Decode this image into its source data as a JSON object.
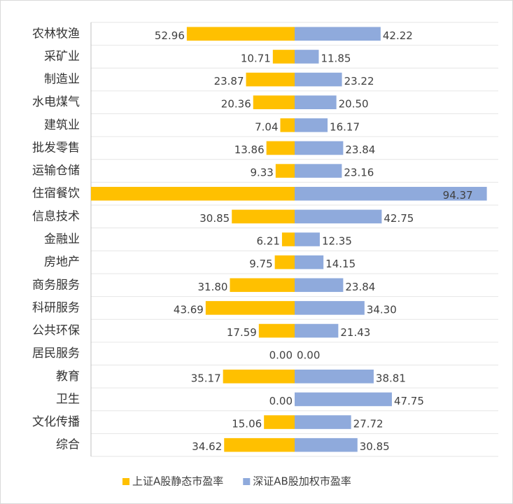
{
  "chart_data": {
    "type": "bar",
    "categories": [
      "农林牧渔",
      "采矿业",
      "制造业",
      "水电煤气",
      "建筑业",
      "批发零售",
      "运输仓储",
      "住宿餐饮",
      "信息技术",
      "金融业",
      "房地产",
      "商务服务",
      "科研服务",
      "公共环保",
      "居民服务",
      "教育",
      "卫生",
      "文化传播",
      "综合"
    ],
    "series": [
      {
        "name": "上证A股静态市盈率",
        "color": "#ffc000",
        "values": [
          52.96,
          10.71,
          23.87,
          20.36,
          7.04,
          13.86,
          9.33,
          105,
          30.85,
          6.21,
          9.75,
          31.8,
          43.69,
          17.59,
          0,
          35.17,
          0,
          15.06,
          34.62
        ],
        "value_labels": [
          "52.96",
          "10.71",
          "23.87",
          "20.36",
          "7.04",
          "13.86",
          "9.33",
          null,
          "30.85",
          "6.21",
          "9.75",
          "31.80",
          "43.69",
          "17.59",
          "0.00",
          "35.17",
          "0.00",
          "15.06",
          "34.62"
        ]
      },
      {
        "name": "深证AB股加权市盈率",
        "color": "#8faadc",
        "values": [
          42.22,
          11.85,
          23.22,
          20.5,
          16.17,
          23.84,
          23.16,
          94.37,
          42.75,
          12.35,
          14.15,
          23.84,
          34.3,
          21.43,
          0,
          38.81,
          47.75,
          27.72,
          30.85
        ],
        "value_labels": [
          "42.22",
          "11.85",
          "23.22",
          "20.50",
          "16.17",
          "23.84",
          "23.16",
          "94.37",
          "42.75",
          "12.35",
          "14.15",
          "23.84",
          "34.30",
          "21.43",
          "0.00",
          "38.81",
          "47.75",
          "27.72",
          "30.85"
        ]
      }
    ],
    "xlim": [
      -100,
      100
    ],
    "grid": true,
    "legend": "bottom"
  }
}
